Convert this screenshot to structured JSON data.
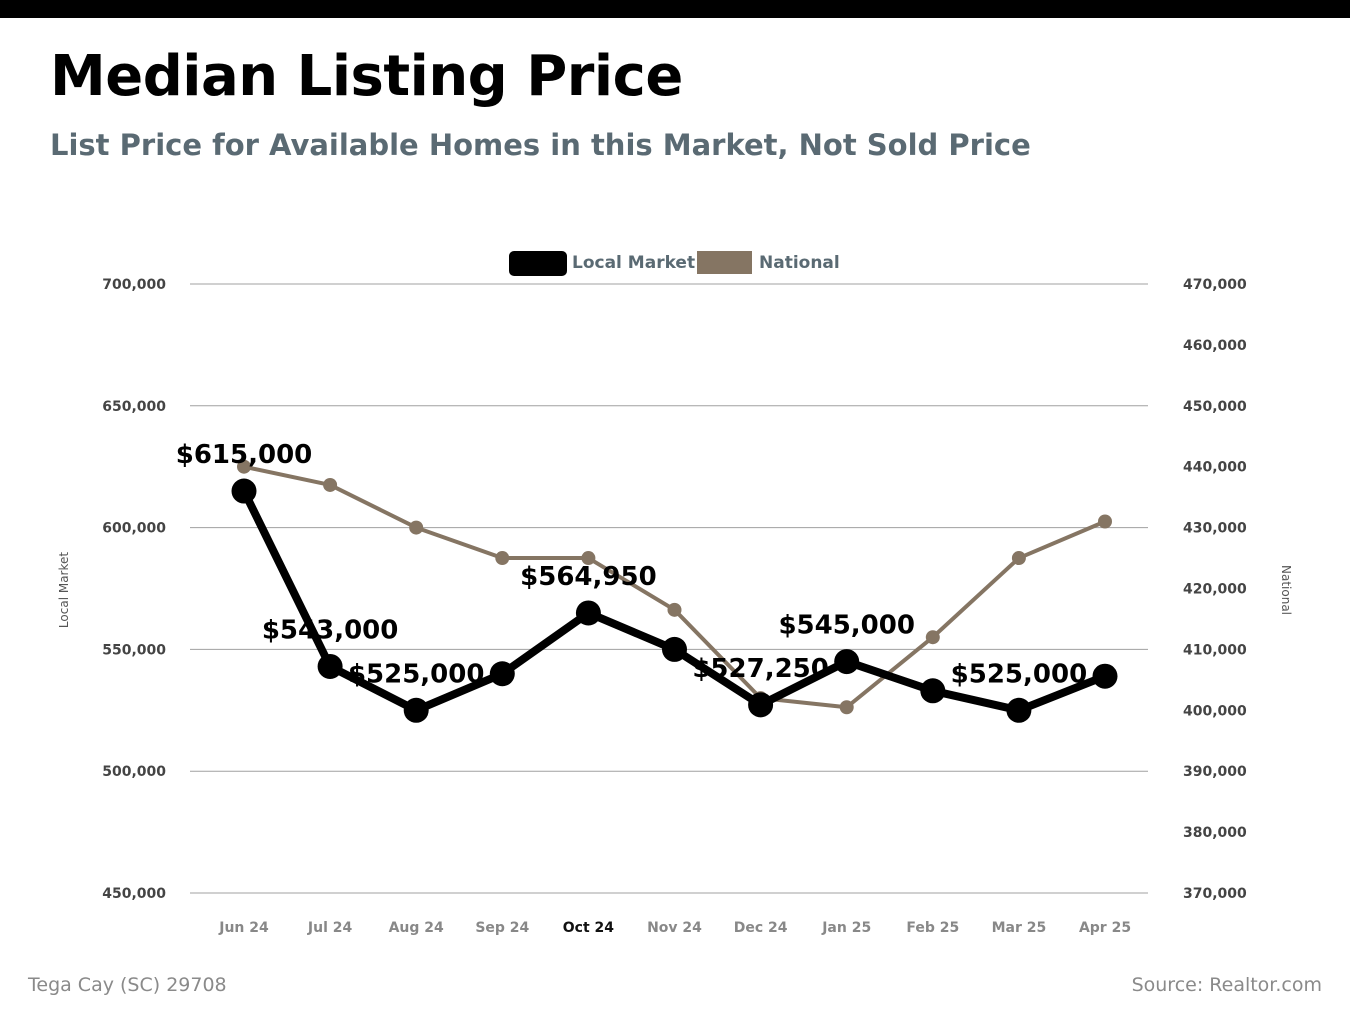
{
  "header": {
    "title": "Median Listing Price",
    "subtitle": "List Price for Available Homes in this Market, Not Sold Price"
  },
  "footer": {
    "location": "Tega Cay (SC) 29708",
    "source": "Source: Realtor.com"
  },
  "colors": {
    "local": "#000000",
    "national": "#857563",
    "grid": "#a0a0a0",
    "subtitle": "#5a6a73"
  },
  "chart_data": {
    "type": "line",
    "title": "Median Listing Price",
    "subtitle": "List Price for Available Homes in this Market, Not Sold Price",
    "categories": [
      "Jun 24",
      "Jul 24",
      "Aug 24",
      "Sep 24",
      "Oct 24",
      "Nov 24",
      "Dec 24",
      "Jan 25",
      "Feb 25",
      "Mar 25",
      "Apr 25"
    ],
    "highlighted_category": "Oct 24",
    "legend_position": "top-center",
    "grid": true,
    "y_left": {
      "label": "Local Market",
      "range": [
        450000,
        700000
      ],
      "ticks": [
        "450,000",
        "500,000",
        "550,000",
        "600,000",
        "650,000",
        "700,000"
      ],
      "tick_values": [
        450000,
        500000,
        550000,
        600000,
        650000,
        700000
      ]
    },
    "y_right": {
      "label": "National",
      "range": [
        370000,
        470000
      ],
      "ticks": [
        "370,000",
        "380,000",
        "390,000",
        "400,000",
        "410,000",
        "420,000",
        "430,000",
        "440,000",
        "450,000",
        "460,000",
        "470,000"
      ],
      "tick_values": [
        370000,
        380000,
        390000,
        400000,
        410000,
        420000,
        430000,
        440000,
        450000,
        460000,
        470000
      ]
    },
    "series": [
      {
        "name": "Local Market",
        "axis": "left",
        "values": [
          615000,
          543000,
          525000,
          540000,
          564950,
          550000,
          527250,
          545000,
          533000,
          525000,
          539000
        ],
        "labels": [
          "$615,000",
          "$543,000",
          "$525,000",
          null,
          "$564,950",
          null,
          "$527,250",
          "$545,000",
          null,
          "$525,000",
          null
        ]
      },
      {
        "name": "National",
        "axis": "right",
        "values": [
          440000,
          437000,
          430000,
          425000,
          425000,
          416500,
          402000,
          400500,
          412000,
          425000,
          431000
        ]
      }
    ]
  }
}
